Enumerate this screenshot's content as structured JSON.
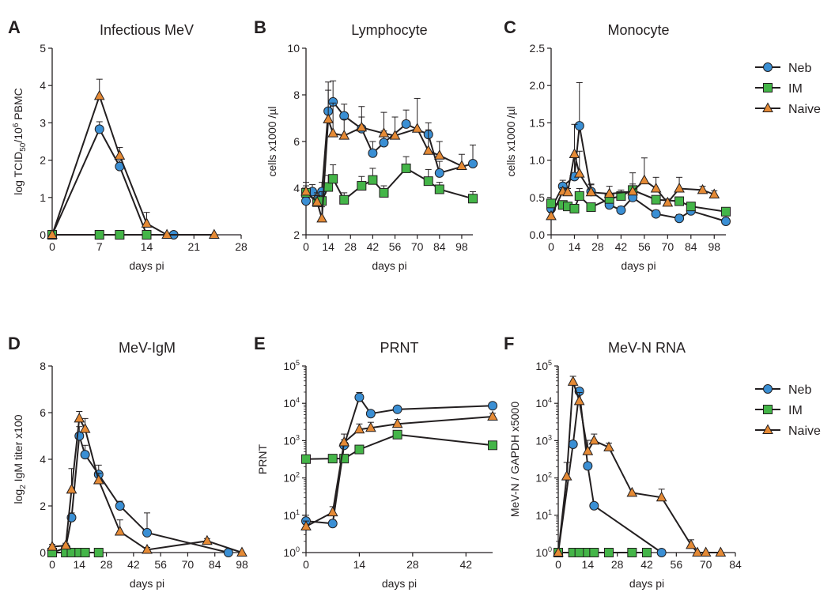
{
  "legends": [
    {
      "items": [
        {
          "label": "Neb",
          "series": "Neb"
        },
        {
          "label": "IM",
          "series": "IM"
        },
        {
          "label": "Naive",
          "series": "Naive"
        }
      ]
    },
    {
      "items": [
        {
          "label": "Neb",
          "series": "Neb"
        },
        {
          "label": "IM",
          "series": "IM"
        },
        {
          "label": "Naive",
          "series": "Naive"
        }
      ]
    }
  ],
  "series_styles": {
    "Neb": {
      "marker": "circle",
      "color": "#3a8fd4"
    },
    "IM": {
      "marker": "square",
      "color": "#44b548"
    },
    "Naive": {
      "marker": "triangle",
      "color": "#e58a35"
    }
  },
  "chart_data": [
    {
      "panel": "A",
      "type": "line",
      "title": "Infectious MeV",
      "xlabel": "days pi",
      "ylabel_parts": [
        "log TCID",
        "50",
        "/10",
        "6",
        " PBMC"
      ],
      "xlim": [
        0,
        28
      ],
      "ylim": [
        0,
        5
      ],
      "xticks": [
        0,
        7,
        14,
        21,
        28
      ],
      "yticks": [
        0,
        1,
        2,
        3,
        4,
        5
      ],
      "series": [
        {
          "name": "Neb",
          "x": [
            0,
            7,
            10,
            14,
            18
          ],
          "y": [
            0,
            2.83,
            1.83,
            0,
            0
          ],
          "err": [
            0,
            0.2,
            0.15,
            0,
            0
          ]
        },
        {
          "name": "IM",
          "x": [
            0,
            7,
            10,
            14
          ],
          "y": [
            0,
            0,
            0,
            0
          ],
          "err": [
            0,
            0,
            0,
            0
          ]
        },
        {
          "name": "Naive",
          "x": [
            0,
            7,
            10,
            14,
            17,
            24
          ],
          "y": [
            0,
            3.72,
            2.12,
            0.3,
            0,
            0
          ],
          "err": [
            0,
            0.45,
            0.22,
            0.3,
            0,
            0
          ]
        }
      ]
    },
    {
      "panel": "B",
      "type": "line",
      "title": "Lymphocyte",
      "xlabel": "days pi",
      "ylabel": "cells x1000 /µl",
      "xlim": [
        0,
        105
      ],
      "ylim": [
        2,
        10
      ],
      "xticks": [
        0,
        14,
        28,
        42,
        56,
        70,
        84,
        98
      ],
      "yticks": [
        2,
        4,
        6,
        8,
        10
      ],
      "series": [
        {
          "name": "Neb",
          "x": [
            0,
            4,
            7,
            10,
            14,
            17,
            24,
            35,
            42,
            49,
            63,
            77,
            84,
            105
          ],
          "y": [
            3.45,
            3.85,
            3.5,
            3.85,
            7.3,
            7.7,
            7.1,
            6.55,
            5.5,
            5.95,
            6.75,
            6.3,
            4.65,
            5.05
          ],
          "err": [
            0.4,
            0.3,
            0.3,
            0.4,
            0.9,
            0.9,
            0.5,
            0.5,
            0.5,
            0.5,
            0.6,
            0.5,
            0.5,
            0.8
          ]
        },
        {
          "name": "IM",
          "x": [
            0,
            7,
            10,
            14,
            17,
            24,
            35,
            42,
            49,
            63,
            77,
            84,
            105
          ],
          "y": [
            3.8,
            3.4,
            3.45,
            4.05,
            4.4,
            3.5,
            4.1,
            4.35,
            3.8,
            4.85,
            4.3,
            3.95,
            3.55
          ],
          "err": [
            0.3,
            0.3,
            0.4,
            0.5,
            0.6,
            0.3,
            0.4,
            0.5,
            0.3,
            0.5,
            0.5,
            0.3,
            0.3
          ]
        },
        {
          "name": "Naive",
          "x": [
            0,
            7,
            10,
            14,
            17,
            24,
            35,
            49,
            56,
            70,
            77,
            84,
            98
          ],
          "y": [
            3.85,
            3.4,
            2.7,
            6.95,
            6.35,
            6.25,
            6.6,
            6.35,
            6.25,
            6.55,
            5.6,
            5.4,
            4.95
          ],
          "err": [
            0.4,
            0.4,
            0.5,
            1.6,
            1.3,
            0.7,
            0.9,
            0.9,
            0.8,
            1.3,
            0.9,
            0.6,
            0.5
          ]
        }
      ]
    },
    {
      "panel": "C",
      "type": "line",
      "title": "Monocyte",
      "xlabel": "days pi",
      "ylabel": "cells x1000 /µl",
      "xlim": [
        0,
        105
      ],
      "ylim": [
        0,
        2.5
      ],
      "xticks": [
        0,
        14,
        28,
        42,
        56,
        70,
        84,
        98
      ],
      "yticks": [
        0.0,
        0.5,
        1.0,
        1.5,
        2.0,
        2.5
      ],
      "series": [
        {
          "name": "Neb",
          "x": [
            0,
            7,
            14,
            17,
            24,
            35,
            42,
            49,
            63,
            77,
            84,
            105
          ],
          "y": [
            0.35,
            0.65,
            0.78,
            1.46,
            0.58,
            0.4,
            0.33,
            0.5,
            0.28,
            0.22,
            0.32,
            0.18
          ],
          "err": [
            0.05,
            0.08,
            0.3,
            0.58,
            0.1,
            0.05,
            0.05,
            0.08,
            0.05,
            0.05,
            0.05,
            0.05
          ]
        },
        {
          "name": "IM",
          "x": [
            0,
            7,
            10,
            14,
            17,
            24,
            35,
            42,
            49,
            63,
            77,
            84,
            105
          ],
          "y": [
            0.42,
            0.4,
            0.38,
            0.35,
            0.52,
            0.37,
            0.48,
            0.52,
            0.6,
            0.47,
            0.45,
            0.38,
            0.31
          ],
          "err": [
            0.05,
            0.05,
            0.05,
            0.05,
            0.1,
            0.05,
            0.05,
            0.08,
            0.08,
            0.05,
            0.05,
            0.05,
            0.05
          ]
        },
        {
          "name": "Naive",
          "x": [
            0,
            7,
            10,
            14,
            17,
            24,
            35,
            49,
            56,
            63,
            70,
            77,
            91,
            98
          ],
          "y": [
            0.25,
            0.58,
            0.57,
            1.08,
            0.82,
            0.57,
            0.55,
            0.58,
            0.73,
            0.62,
            0.43,
            0.62,
            0.6,
            0.54
          ],
          "err": [
            0.05,
            0.05,
            0.05,
            0.4,
            0.3,
            0.1,
            0.1,
            0.25,
            0.3,
            0.15,
            0.05,
            0.15,
            0.05,
            0.05
          ]
        }
      ]
    },
    {
      "panel": "D",
      "type": "line",
      "title": "MeV-IgM",
      "xlabel": "days pi",
      "ylabel_parts": [
        "log",
        "2",
        " IgM titer x100"
      ],
      "xlim": [
        0,
        98
      ],
      "ylim": [
        0,
        8
      ],
      "xticks": [
        0,
        14,
        28,
        42,
        56,
        70,
        84,
        98
      ],
      "yticks": [
        0,
        2,
        4,
        6,
        8
      ],
      "series": [
        {
          "name": "Neb",
          "x": [
            0,
            7,
            10,
            14,
            17,
            24,
            35,
            49,
            91
          ],
          "y": [
            0,
            0.2,
            1.5,
            5.0,
            4.2,
            3.35,
            2.0,
            0.85,
            0
          ],
          "err": [
            0,
            0.1,
            0.2,
            0.4,
            0.4,
            0.4,
            0.2,
            0.85,
            0
          ]
        },
        {
          "name": "IM",
          "x": [
            0,
            7,
            10,
            14,
            17,
            24
          ],
          "y": [
            0,
            0,
            0,
            0,
            0,
            0
          ],
          "err": [
            0,
            0,
            0,
            0,
            0,
            0
          ]
        },
        {
          "name": "Naive",
          "x": [
            0,
            7,
            10,
            14,
            17,
            24,
            35,
            49,
            80,
            98
          ],
          "y": [
            0.25,
            0.3,
            2.7,
            5.75,
            5.3,
            3.1,
            0.9,
            0.12,
            0.5,
            0
          ],
          "err": [
            0.1,
            0.1,
            0.9,
            0.3,
            0.45,
            0.3,
            0.5,
            0.1,
            0.1,
            0
          ]
        }
      ]
    },
    {
      "panel": "E",
      "type": "line",
      "title": "PRNT",
      "xlabel": "days pi",
      "ylabel": "PRNT",
      "yscale": "log",
      "xlim": [
        0,
        49
      ],
      "ylim": [
        1,
        100000
      ],
      "xticks": [
        0,
        14,
        28,
        42
      ],
      "yticks": [
        1,
        10,
        100,
        1000,
        10000,
        100000
      ],
      "ytick_labels": [
        [
          "10",
          "0"
        ],
        [
          "10",
          "1"
        ],
        [
          "10",
          "2"
        ],
        [
          "10",
          "3"
        ],
        [
          "10",
          "4"
        ],
        [
          "10",
          "5"
        ]
      ],
      "series": [
        {
          "name": "Neb",
          "x": [
            0,
            7,
            10,
            14,
            17,
            24,
            49
          ],
          "y": [
            7,
            6,
            750,
            14500,
            5300,
            6900,
            8600
          ],
          "err": [
            3,
            1.5,
            300,
            5000,
            1000,
            1500,
            1500
          ]
        },
        {
          "name": "IM",
          "x": [
            0,
            7,
            10,
            14,
            24,
            49
          ],
          "y": [
            320,
            330,
            330,
            580,
            1450,
            750
          ],
          "err": [
            0,
            0,
            0,
            0,
            0,
            0
          ]
        },
        {
          "name": "Naive",
          "x": [
            0,
            7,
            10,
            14,
            17,
            24,
            49
          ],
          "y": [
            5,
            12,
            900,
            2000,
            2200,
            2800,
            4400
          ],
          "err": [
            2,
            5,
            600,
            800,
            900,
            900,
            1000
          ]
        }
      ]
    },
    {
      "panel": "F",
      "type": "line",
      "title": "MeV-N RNA",
      "xlabel": "days pi",
      "ylabel": "MeV-N / GAPDH x5000",
      "yscale": "log",
      "xlim": [
        0,
        84
      ],
      "ylim": [
        1,
        100000
      ],
      "xticks": [
        0,
        14,
        28,
        42,
        56,
        70,
        84
      ],
      "yticks": [
        1,
        10,
        100,
        1000,
        10000,
        100000
      ],
      "ytick_labels": [
        [
          "10",
          "0"
        ],
        [
          "10",
          "1"
        ],
        [
          "10",
          "2"
        ],
        [
          "10",
          "3"
        ],
        [
          "10",
          "4"
        ],
        [
          "10",
          "5"
        ]
      ],
      "series": [
        {
          "name": "Neb",
          "x": [
            0,
            7,
            10,
            14,
            17,
            49
          ],
          "y": [
            1,
            800,
            21000,
            210,
            18,
            1
          ],
          "err": [
            0,
            0,
            3000,
            50,
            0,
            0
          ]
        },
        {
          "name": "IM",
          "x": [
            0,
            7,
            10,
            14,
            17,
            24,
            35,
            42
          ],
          "y": [
            1,
            1,
            1,
            1,
            1,
            1,
            1,
            1
          ],
          "err": [
            0,
            0,
            0,
            0,
            0,
            0,
            0,
            0
          ]
        },
        {
          "name": "Naive",
          "x": [
            0,
            4,
            7,
            10,
            14,
            17,
            24,
            35,
            49,
            63,
            66,
            70,
            77
          ],
          "y": [
            1,
            110,
            38000,
            11500,
            520,
            1000,
            660,
            40,
            30,
            1.6,
            1,
            1,
            1
          ],
          "err": [
            0,
            150,
            15000,
            8000,
            500,
            500,
            200,
            0,
            20,
            0.6,
            0,
            0,
            0
          ]
        }
      ]
    }
  ]
}
